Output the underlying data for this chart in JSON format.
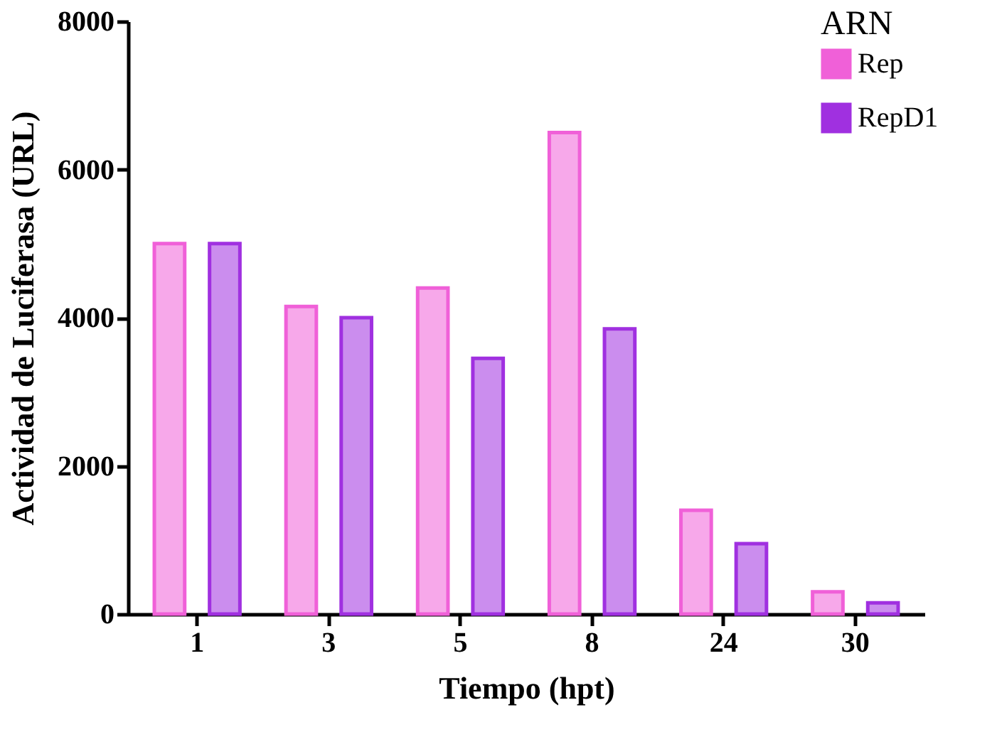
{
  "chart_data": {
    "type": "bar",
    "xlabel": "Tiempo (hpt)",
    "ylabel": "Actividad de Luciferasa (URL)",
    "legend_title": "ARN",
    "categories": [
      "1",
      "3",
      "5",
      "8",
      "24",
      "30"
    ],
    "series": [
      {
        "name": "Rep",
        "color": "#f060d8",
        "values": [
          5000,
          4150,
          4400,
          6500,
          1400,
          300
        ]
      },
      {
        "name": "RepD1",
        "color": "#a030e0",
        "values": [
          5000,
          4000,
          3450,
          3850,
          950,
          150
        ]
      }
    ],
    "ylim": [
      0,
      8000
    ],
    "yticks": [
      0,
      2000,
      4000,
      6000,
      8000
    ],
    "grid": false,
    "legend": "top right"
  }
}
